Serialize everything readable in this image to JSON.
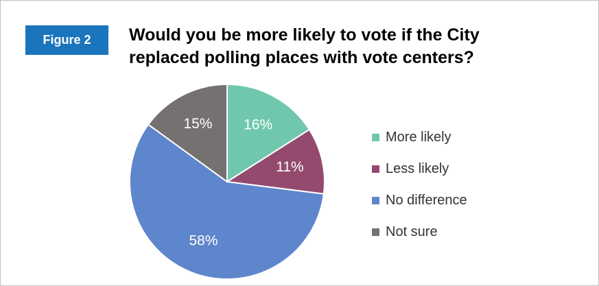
{
  "figure_label": "Figure 2",
  "colors": {
    "badge": "#1b75bc",
    "more_likely": "#6fc8ad",
    "less_likely": "#934a6e",
    "no_difference": "#5e86cc",
    "not_sure": "#767171"
  },
  "chart_data": {
    "type": "pie",
    "title": "Would you be more likely to vote if the City replaced polling places with vote centers?",
    "start_angle_deg": 0,
    "direction": "clockwise",
    "legend_position": "right",
    "slices": [
      {
        "label": "More likely",
        "value": 16,
        "display": "16%",
        "color": "#6fc8ad"
      },
      {
        "label": "Less likely",
        "value": 11,
        "display": "11%",
        "color": "#934a6e"
      },
      {
        "label": "No difference",
        "value": 58,
        "display": "58%",
        "color": "#5e86cc"
      },
      {
        "label": "Not sure",
        "value": 15,
        "display": "15%",
        "color": "#767171"
      }
    ]
  }
}
